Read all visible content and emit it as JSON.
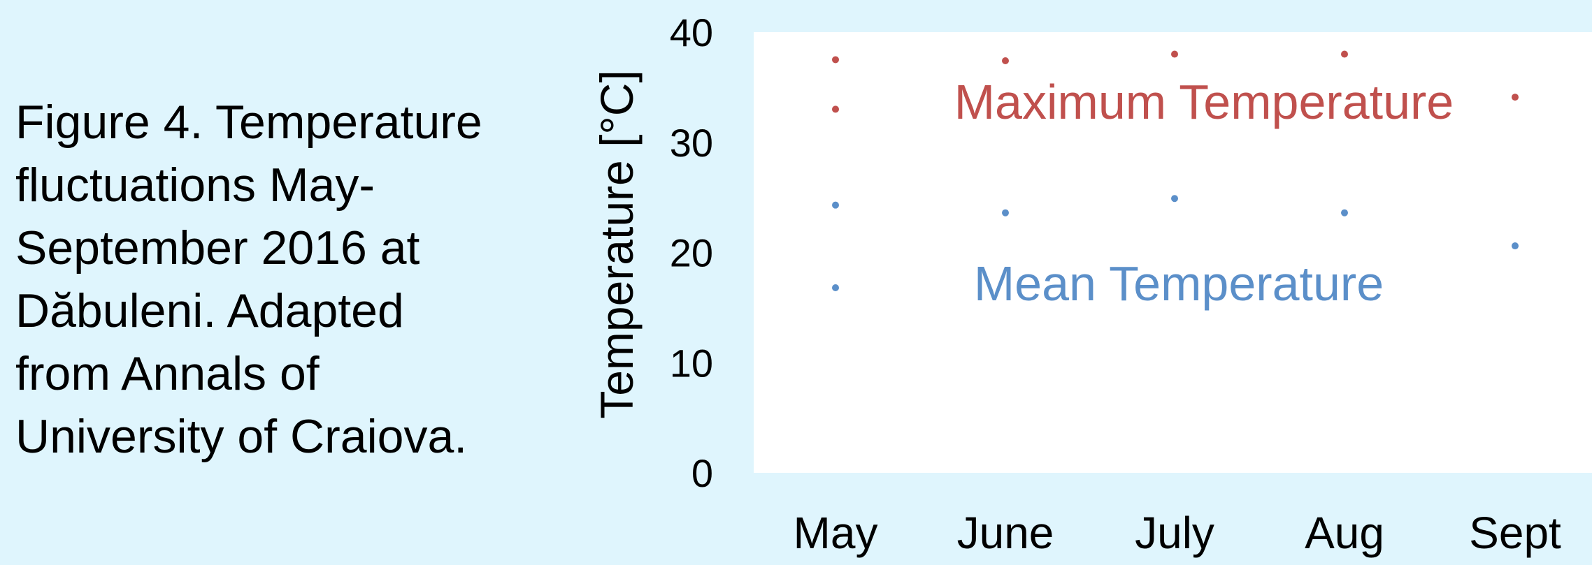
{
  "caption": "Figure 4. Temperature\nfluctuations May-\nSeptember 2016 at\nDăbuleni. Adapted\nfrom Annals of\nUniversity of Craiova.",
  "chart_data": {
    "type": "scatter",
    "ylabel": "Temperature [°C]",
    "ylim": [
      0,
      40
    ],
    "yticks": [
      0,
      10,
      20,
      30,
      40
    ],
    "categories": [
      "May",
      "June",
      "July",
      "Aug",
      "Sept"
    ],
    "series": [
      {
        "name": "Maximum Temperature",
        "color": "#c0504d",
        "points": [
          {
            "x": "May",
            "y": 37.5
          },
          {
            "x": "May",
            "y": 33.0
          },
          {
            "x": "June",
            "y": 37.4
          },
          {
            "x": "July",
            "y": 38.0
          },
          {
            "x": "Aug",
            "y": 38.0
          },
          {
            "x": "Sept",
            "y": 34.1
          }
        ]
      },
      {
        "name": "Mean Temperature",
        "color": "#5b8fc9",
        "points": [
          {
            "x": "May",
            "y": 24.3
          },
          {
            "x": "May",
            "y": 16.8
          },
          {
            "x": "June",
            "y": 23.6
          },
          {
            "x": "July",
            "y": 24.9
          },
          {
            "x": "Aug",
            "y": 23.6
          },
          {
            "x": "Sept",
            "y": 20.6
          }
        ]
      }
    ],
    "plot_background": "#ffffff",
    "page_background": "#dff5fd"
  }
}
